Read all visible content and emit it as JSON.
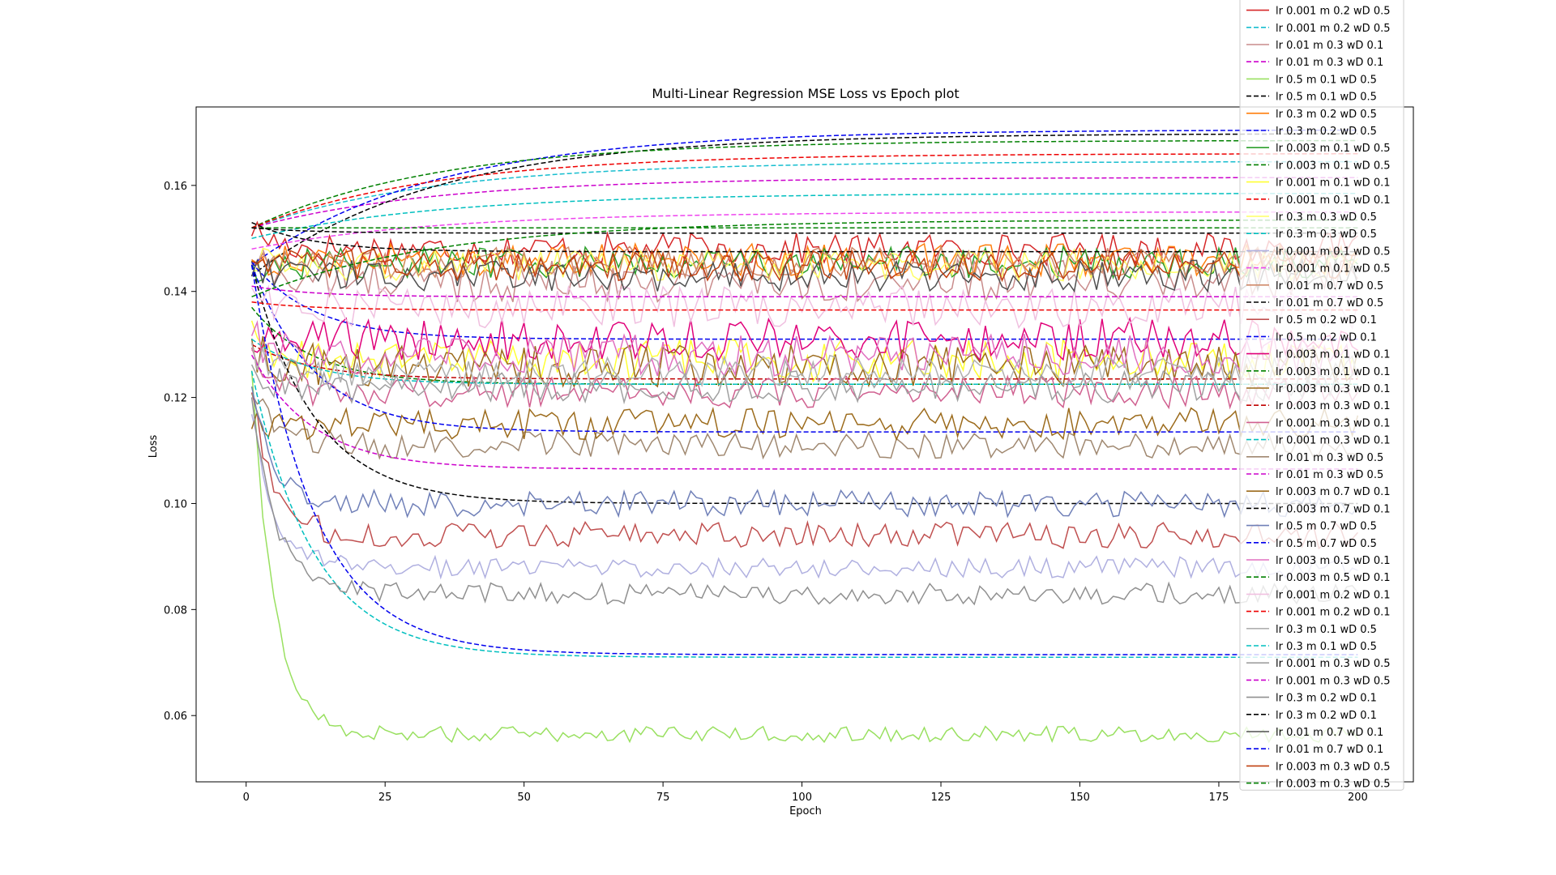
{
  "chart_data": {
    "type": "line",
    "title": "Multi-Linear Regression MSE Loss vs Epoch plot",
    "xlabel": "Epoch",
    "ylabel": "Loss",
    "xlim": [
      -9,
      210
    ],
    "ylim": [
      0.0475,
      0.1748
    ],
    "x_ticks": [
      0,
      25,
      50,
      75,
      100,
      125,
      150,
      175,
      200
    ],
    "x_tick_labels": [
      "0",
      "25",
      "50",
      "75",
      "100",
      "125",
      "150",
      "175",
      "200"
    ],
    "y_ticks": [
      0.06,
      0.08,
      0.1,
      0.12,
      0.14,
      0.16
    ],
    "y_tick_labels": [
      "0.06",
      "0.08",
      "0.10",
      "0.12",
      "0.14",
      "0.16"
    ],
    "grid": false,
    "legend_position": "right, overflowing top of plot",
    "epochs": 200,
    "series": [
      {
        "name": "lr 0.001 m 0.2 wD 0.5",
        "color": "#d62728",
        "dash": false,
        "start": 0.152,
        "end": 0.148,
        "noise": 0.003
      },
      {
        "name": "lr 0.001 m 0.2 wD 0.5",
        "color": "#17becf",
        "dash": true,
        "start": 0.152,
        "end": 0.1645,
        "noise": 0
      },
      {
        "name": "lr 0.01 m 0.3 wD 0.1",
        "color": "#c98c8c",
        "dash": false,
        "start": 0.147,
        "end": 0.142,
        "noise": 0.004
      },
      {
        "name": "lr 0.01 m 0.3 wD 0.1",
        "color": "#cc00cc",
        "dash": true,
        "start": 0.152,
        "end": 0.1615,
        "noise": 0
      },
      {
        "name": "lr 0.5 m 0.1 wD 0.5",
        "color": "#99e060",
        "dash": false,
        "start": 0.125,
        "end": 0.0565,
        "noise": 0.0015
      },
      {
        "name": "lr 0.5 m 0.1 wD 0.5",
        "color": "#000000",
        "dash": true,
        "start": 0.143,
        "end": 0.1698,
        "noise": 0
      },
      {
        "name": "lr 0.3 m 0.2 wD 0.5",
        "color": "#ff7f0e",
        "dash": false,
        "start": 0.145,
        "end": 0.146,
        "noise": 0.003
      },
      {
        "name": "lr 0.3 m 0.2 wD 0.5",
        "color": "#0000ee",
        "dash": true,
        "start": 0.145,
        "end": 0.1705,
        "noise": 0
      },
      {
        "name": "lr 0.003 m 0.1 wD 0.5",
        "color": "#2ca02c",
        "dash": false,
        "start": 0.144,
        "end": 0.1455,
        "noise": 0.003
      },
      {
        "name": "lr 0.003 m 0.1 wD 0.5",
        "color": "#008000",
        "dash": true,
        "start": 0.152,
        "end": 0.1685,
        "noise": 0
      },
      {
        "name": "lr 0.001 m 0.1 wD 0.1",
        "color": "#ffff33",
        "dash": false,
        "start": 0.131,
        "end": 0.127,
        "noise": 0.004
      },
      {
        "name": "lr 0.001 m 0.1 wD 0.1",
        "color": "#ee0000",
        "dash": true,
        "start": 0.152,
        "end": 0.166,
        "noise": 0
      },
      {
        "name": "lr 0.3 m 0.3 wD 0.5",
        "color": "#ffff66",
        "dash": false,
        "start": 0.146,
        "end": 0.145,
        "noise": 0.003
      },
      {
        "name": "lr 0.3 m 0.3 wD 0.5",
        "color": "#00bfbf",
        "dash": true,
        "start": 0.15,
        "end": 0.1585,
        "noise": 0
      },
      {
        "name": "lr 0.001 m 0.1 wD 0.5",
        "color": "#b0b0e0",
        "dash": false,
        "start": 0.118,
        "end": 0.088,
        "noise": 0.002
      },
      {
        "name": "lr 0.001 m 0.1 wD 0.5",
        "color": "#ee44ee",
        "dash": true,
        "start": 0.148,
        "end": 0.155,
        "noise": 0
      },
      {
        "name": "lr 0.01 m 0.7 wD 0.5",
        "color": "#d08a6a",
        "dash": false,
        "start": 0.146,
        "end": 0.1455,
        "noise": 0.003
      },
      {
        "name": "lr 0.01 m 0.7 wD 0.5",
        "color": "#000000",
        "dash": true,
        "start": 0.153,
        "end": 0.1475,
        "noise": 0
      },
      {
        "name": "lr 0.5 m 0.2 wD 0.1",
        "color": "#c05050",
        "dash": false,
        "start": 0.121,
        "end": 0.094,
        "noise": 0.0025
      },
      {
        "name": "lr 0.5 m 0.2 wD 0.1",
        "color": "#0000ee",
        "dash": true,
        "start": 0.1455,
        "end": 0.131,
        "noise": 0
      },
      {
        "name": "lr 0.003 m 0.1 wD 0.1",
        "color": "#e0007a",
        "dash": false,
        "start": 0.128,
        "end": 0.131,
        "noise": 0.004
      },
      {
        "name": "lr 0.003 m 0.1 wD 0.1",
        "color": "#008000",
        "dash": true,
        "start": 0.137,
        "end": 0.1225,
        "noise": 0
      },
      {
        "name": "lr 0.003 m 0.3 wD 0.1",
        "color": "#9c6b1c",
        "dash": false,
        "start": 0.129,
        "end": 0.126,
        "noise": 0.004
      },
      {
        "name": "lr 0.003 m 0.3 wD 0.1",
        "color": "#c00000",
        "dash": true,
        "start": 0.13,
        "end": 0.1235,
        "noise": 0
      },
      {
        "name": "lr 0.001 m 0.3 wD 0.1",
        "color": "#d06090",
        "dash": false,
        "start": 0.127,
        "end": 0.121,
        "noise": 0.003
      },
      {
        "name": "lr 0.001 m 0.3 wD 0.1",
        "color": "#00bfbf",
        "dash": true,
        "start": 0.131,
        "end": 0.1225,
        "noise": 0
      },
      {
        "name": "lr 0.01 m 0.3 wD 0.5",
        "color": "#a08870",
        "dash": false,
        "start": 0.123,
        "end": 0.111,
        "noise": 0.0025
      },
      {
        "name": "lr 0.01 m 0.3 wD 0.5",
        "color": "#cc00cc",
        "dash": true,
        "start": 0.128,
        "end": 0.1065,
        "noise": 0
      },
      {
        "name": "lr 0.003 m 0.7 wD 0.1",
        "color": "#9c6b1c",
        "dash": false,
        "start": 0.116,
        "end": 0.115,
        "noise": 0.003
      },
      {
        "name": "lr 0.003 m 0.7 wD 0.1",
        "color": "#000000",
        "dash": true,
        "start": 0.145,
        "end": 0.1,
        "noise": 0
      },
      {
        "name": "lr 0.5 m 0.7 wD 0.5",
        "color": "#7080b8",
        "dash": false,
        "start": 0.123,
        "end": 0.1,
        "noise": 0.0025
      },
      {
        "name": "lr 0.5 m 0.7 wD 0.5",
        "color": "#0000ee",
        "dash": true,
        "start": 0.145,
        "end": 0.1135,
        "noise": 0
      },
      {
        "name": "lr 0.003 m 0.5 wD 0.1",
        "color": "#e070c0",
        "dash": false,
        "start": 0.132,
        "end": 0.128,
        "noise": 0.004
      },
      {
        "name": "lr 0.003 m 0.5 wD 0.1",
        "color": "#008000",
        "dash": true,
        "start": 0.152,
        "end": 0.152,
        "noise": 0
      },
      {
        "name": "lr 0.001 m 0.2 wD 0.1",
        "color": "#f0c0e0",
        "dash": false,
        "start": 0.14,
        "end": 0.137,
        "noise": 0.004
      },
      {
        "name": "lr 0.001 m 0.2 wD 0.1",
        "color": "#ee0000",
        "dash": true,
        "start": 0.138,
        "end": 0.1365,
        "noise": 0
      },
      {
        "name": "lr 0.3 m 0.1 wD 0.5",
        "color": "#b0b0b0",
        "dash": false,
        "start": 0.129,
        "end": 0.125,
        "noise": 0.003
      },
      {
        "name": "lr 0.3 m 0.1 wD 0.5",
        "color": "#00bfbf",
        "dash": true,
        "start": 0.125,
        "end": 0.071,
        "noise": 0
      },
      {
        "name": "lr 0.001 m 0.3 wD 0.5",
        "color": "#a0a0a0",
        "dash": false,
        "start": 0.124,
        "end": 0.122,
        "noise": 0.003
      },
      {
        "name": "lr 0.001 m 0.3 wD 0.5",
        "color": "#cc00cc",
        "dash": true,
        "start": 0.141,
        "end": 0.139,
        "noise": 0
      },
      {
        "name": "lr 0.3 m 0.2 wD 0.1",
        "color": "#909090",
        "dash": false,
        "start": 0.122,
        "end": 0.083,
        "noise": 0.002
      },
      {
        "name": "lr 0.3 m 0.2 wD 0.1",
        "color": "#000000",
        "dash": true,
        "start": 0.152,
        "end": 0.151,
        "noise": 0
      },
      {
        "name": "lr 0.01 m 0.7 wD 0.1",
        "color": "#505050",
        "dash": false,
        "start": 0.145,
        "end": 0.143,
        "noise": 0.003
      },
      {
        "name": "lr 0.01 m 0.7 wD 0.1",
        "color": "#0000ee",
        "dash": true,
        "start": 0.145,
        "end": 0.0715,
        "noise": 0
      },
      {
        "name": "lr 0.003 m 0.3 wD 0.5",
        "color": "#c04010",
        "dash": false,
        "start": 0.147,
        "end": 0.145,
        "noise": 0.003
      },
      {
        "name": "lr 0.003 m 0.3 wD 0.5",
        "color": "#008000",
        "dash": true,
        "start": 0.139,
        "end": 0.1535,
        "noise": 0
      }
    ]
  }
}
